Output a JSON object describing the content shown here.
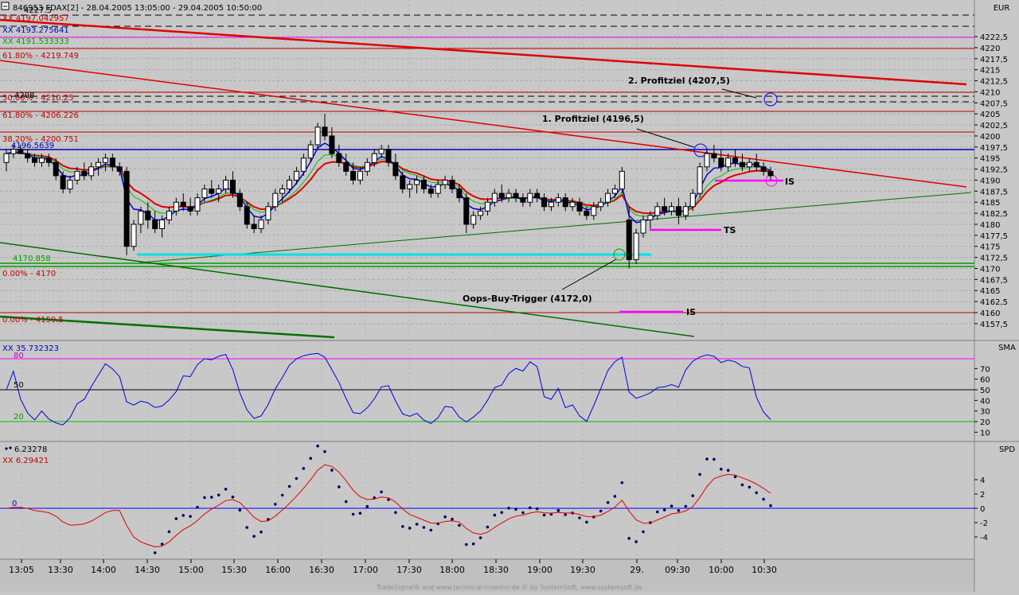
{
  "window_title": "846953  FDAX[2] - 28.04.2005 13:05:00 - 29.04.2005 10:50:00",
  "panels": {
    "price": {
      "axis_label": "EUR",
      "legend": [
        "XX 4197.042957",
        "XX 4193.275641",
        "XX 4191.533333"
      ],
      "level_labels": {
        "fib_top": "61.80% - 4219.749",
        "fib_50": "50.00% - 4210.25",
        "fib_618": "61.80% - 4206.226",
        "fib_382": "38.20% - 4200.751",
        "blue_level": "4196.5639",
        "green_level": "4170.858",
        "fib_zero": "0.00% - 4170",
        "fib_bottom": "0.00% - 4159.5",
        "marker_4208": "4208",
        "marker_4227": "4227.5"
      },
      "annotations": {
        "profit2": "2. Profitziel (4207,5)",
        "profit1": "1. Profitziel (4196,5)",
        "oops": "Oops-Buy-Trigger (4172,0)",
        "is_upper": "IS",
        "ts": "TS",
        "is_lower": "IS"
      },
      "y_ticks": [
        "4222,5",
        "4220",
        "4217,5",
        "4215",
        "4212,5",
        "4210",
        "4207,5",
        "4205",
        "4202,5",
        "4200",
        "4197,5",
        "4195",
        "4192,5",
        "4190",
        "4187,5",
        "4185",
        "4182,5",
        "4180",
        "4177,5",
        "4175",
        "4172,5",
        "4170",
        "4167,5",
        "4165",
        "4162,5",
        "4160",
        "4157,5"
      ]
    },
    "sma": {
      "axis_label": "SMA",
      "legend": "XX 35.732323",
      "levels": {
        "upper": "80",
        "mid": "50",
        "lower": "20"
      },
      "y_ticks": [
        "70",
        "60",
        "50",
        "40",
        "30",
        "20",
        "10"
      ]
    },
    "spd": {
      "axis_label": "SPD",
      "legend_dots": "6.23278",
      "legend_line": "XX 6.29421",
      "zero_label": "0",
      "y_ticks": [
        "4",
        "2",
        "0",
        "-2",
        "-4"
      ]
    }
  },
  "x_ticks": [
    "13:05",
    "13:30",
    "14:00",
    "14:30",
    "15:00",
    "15:30",
    "16:00",
    "16:30",
    "17:00",
    "17:30",
    "18:00",
    "18:30",
    "19:00",
    "19:30",
    "29.",
    "09:30",
    "10:00",
    "10:30"
  ],
  "footer": "TradeSignal® and www.technical-investor.de © by SystemSoft, www.systemsoft.de",
  "chart_data": {
    "type": "candlestick",
    "title": "FDAX[2] - 28.04.2005 13:05:00 - 29.04.2005 10:50:00",
    "ylabel": "EUR",
    "ylim": [
      4155,
      4225
    ],
    "candles": [
      [
        4194,
        4197,
        4192,
        4196
      ],
      [
        4196,
        4198,
        4195,
        4197
      ],
      [
        4197,
        4198,
        4196,
        4196
      ],
      [
        4196,
        4197,
        4194,
        4195
      ],
      [
        4195,
        4196,
        4193,
        4194
      ],
      [
        4194,
        4196,
        4193,
        4195
      ],
      [
        4195,
        4196,
        4193,
        4194
      ],
      [
        4194,
        4195,
        4190,
        4191
      ],
      [
        4191,
        4192,
        4187,
        4188
      ],
      [
        4188,
        4191,
        4187,
        4190
      ],
      [
        4190,
        4193,
        4189,
        4192
      ],
      [
        4192,
        4194,
        4190,
        4191
      ],
      [
        4191,
        4194,
        4190,
        4193
      ],
      [
        4193,
        4195,
        4191,
        4194
      ],
      [
        4194,
        4196,
        4192,
        4195
      ],
      [
        4195,
        4196,
        4192,
        4193
      ],
      [
        4193,
        4194,
        4191,
        4192
      ],
      [
        4192,
        4193,
        4173,
        4175
      ],
      [
        4175,
        4181,
        4174,
        4180
      ],
      [
        4180,
        4184,
        4178,
        4183
      ],
      [
        4183,
        4185,
        4179,
        4181
      ],
      [
        4181,
        4183,
        4178,
        4179
      ],
      [
        4179,
        4182,
        4177,
        4181
      ],
      [
        4181,
        4184,
        4180,
        4183
      ],
      [
        4183,
        4186,
        4182,
        4185
      ],
      [
        4185,
        4187,
        4183,
        4184
      ],
      [
        4184,
        4186,
        4182,
        4183
      ],
      [
        4183,
        4187,
        4182,
        4186
      ],
      [
        4186,
        4189,
        4185,
        4188
      ],
      [
        4188,
        4190,
        4186,
        4187
      ],
      [
        4187,
        4189,
        4185,
        4188
      ],
      [
        4188,
        4191,
        4187,
        4190
      ],
      [
        4190,
        4192,
        4186,
        4187
      ],
      [
        4187,
        4188,
        4183,
        4184
      ],
      [
        4184,
        4185,
        4179,
        4180
      ],
      [
        4180,
        4182,
        4178,
        4179
      ],
      [
        4179,
        4182,
        4178,
        4181
      ],
      [
        4181,
        4185,
        4180,
        4184
      ],
      [
        4184,
        4188,
        4183,
        4187
      ],
      [
        4187,
        4189,
        4185,
        4188
      ],
      [
        4188,
        4191,
        4187,
        4190
      ],
      [
        4190,
        4193,
        4189,
        4192
      ],
      [
        4192,
        4196,
        4191,
        4195
      ],
      [
        4195,
        4199,
        4194,
        4198
      ],
      [
        4198,
        4203,
        4197,
        4202
      ],
      [
        4202,
        4205,
        4199,
        4200
      ],
      [
        4200,
        4202,
        4195,
        4196
      ],
      [
        4196,
        4198,
        4193,
        4194
      ],
      [
        4194,
        4196,
        4191,
        4192
      ],
      [
        4192,
        4194,
        4189,
        4190
      ],
      [
        4190,
        4193,
        4189,
        4192
      ],
      [
        4192,
        4195,
        4191,
        4194
      ],
      [
        4194,
        4197,
        4193,
        4196
      ],
      [
        4196,
        4198,
        4195,
        4197
      ],
      [
        4197,
        4198,
        4193,
        4194
      ],
      [
        4194,
        4196,
        4190,
        4191
      ],
      [
        4191,
        4192,
        4187,
        4188
      ],
      [
        4188,
        4190,
        4186,
        4189
      ],
      [
        4189,
        4191,
        4187,
        4190
      ],
      [
        4190,
        4191,
        4187,
        4188
      ],
      [
        4188,
        4189,
        4186,
        4187
      ],
      [
        4187,
        4190,
        4186,
        4189
      ],
      [
        4189,
        4191,
        4188,
        4190
      ],
      [
        4190,
        4191,
        4187,
        4188
      ],
      [
        4188,
        4189,
        4185,
        4186
      ],
      [
        4186,
        4187,
        4178,
        4180
      ],
      [
        4180,
        4183,
        4179,
        4182
      ],
      [
        4182,
        4184,
        4181,
        4183
      ],
      [
        4183,
        4186,
        4182,
        4185
      ],
      [
        4185,
        4188,
        4184,
        4187
      ],
      [
        4187,
        4189,
        4185,
        4186
      ],
      [
        4186,
        4188,
        4185,
        4187
      ],
      [
        4187,
        4188,
        4185,
        4186
      ],
      [
        4186,
        4187,
        4184,
        4185
      ],
      [
        4185,
        4188,
        4184,
        4187
      ],
      [
        4187,
        4188,
        4185,
        4186
      ],
      [
        4186,
        4187,
        4183,
        4184
      ],
      [
        4184,
        4186,
        4183,
        4185
      ],
      [
        4185,
        4187,
        4184,
        4186
      ],
      [
        4186,
        4187,
        4183,
        4184
      ],
      [
        4184,
        4186,
        4183,
        4185
      ],
      [
        4185,
        4186,
        4182,
        4183
      ],
      [
        4183,
        4184,
        4181,
        4182
      ],
      [
        4182,
        4185,
        4181,
        4184
      ],
      [
        4184,
        4186,
        4183,
        4185
      ],
      [
        4185,
        4188,
        4184,
        4187
      ],
      [
        4187,
        4189,
        4186,
        4188
      ],
      [
        4188,
        4193,
        4187,
        4192
      ],
      [
        4181,
        4184,
        4170,
        4172
      ],
      [
        4172,
        4179,
        4171,
        4178
      ],
      [
        4178,
        4182,
        4177,
        4181
      ],
      [
        4181,
        4183,
        4179,
        4182
      ],
      [
        4182,
        4185,
        4181,
        4184
      ],
      [
        4184,
        4186,
        4182,
        4183
      ],
      [
        4183,
        4185,
        4182,
        4184
      ],
      [
        4184,
        4186,
        4180,
        4182
      ],
      [
        4182,
        4185,
        4181,
        4184
      ],
      [
        4184,
        4188,
        4183,
        4187
      ],
      [
        4187,
        4194,
        4186,
        4193
      ],
      [
        4193,
        4197,
        4192,
        4196
      ],
      [
        4196,
        4198,
        4194,
        4195
      ],
      [
        4195,
        4197,
        4192,
        4193
      ],
      [
        4193,
        4196,
        4192,
        4195
      ],
      [
        4195,
        4197,
        4193,
        4194
      ],
      [
        4194,
        4196,
        4192,
        4193
      ],
      [
        4193,
        4195,
        4192,
        4194
      ],
      [
        4194,
        4196,
        4192,
        4193
      ],
      [
        4193,
        4194,
        4191,
        4192
      ],
      [
        4192,
        4193,
        4190,
        4191
      ]
    ],
    "sma_panel": {
      "ylim": [
        5,
        85
      ],
      "levels": [
        80,
        50,
        20
      ]
    },
    "spd_panel": {
      "ylim": [
        -6,
        8
      ]
    }
  }
}
